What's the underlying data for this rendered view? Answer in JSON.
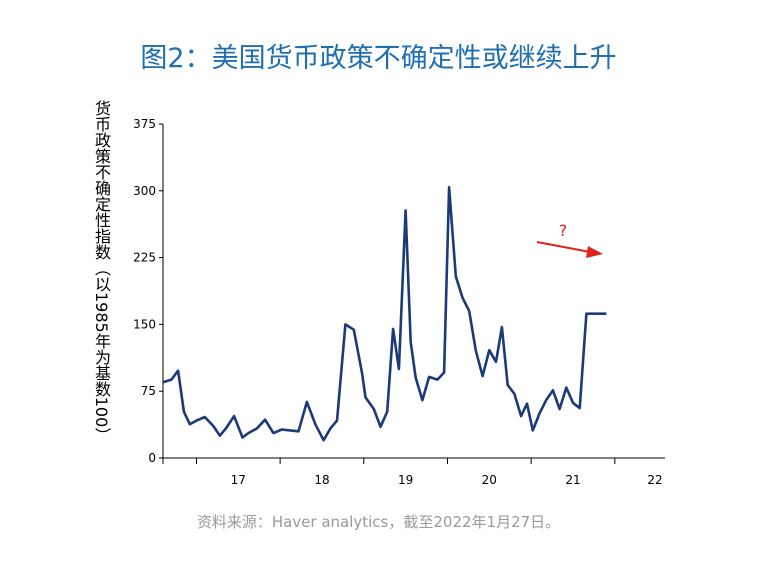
{
  "title": "图2：美国货币政策不确定性或继续上升",
  "source": "资料来源：Haver analytics，截至2022年1月27日。",
  "annotation": "?",
  "colors": {
    "title": "#1f6fb2",
    "line": "#1b3a7a",
    "arrow": "#e0231c"
  },
  "chart_data": {
    "type": "line",
    "title": "图2：美国货币政策不确定性或继续上升",
    "ylabel": "货币政策不确定性指数（以1985年为基数100）",
    "xlabel": "",
    "ylim": [
      0,
      375
    ],
    "yticks": [
      "0",
      "75",
      "150",
      "225",
      "300",
      "375"
    ],
    "xticks": [
      "17",
      "18",
      "19",
      "20",
      "21",
      "22"
    ],
    "xlim": [
      2016.6,
      2022.6
    ],
    "series": [
      {
        "x": [
          2016.6,
          2016.7,
          2016.78,
          2016.85,
          2016.92,
          2017.0,
          2017.1,
          2017.2,
          2017.28,
          2017.35,
          2017.45,
          2017.55,
          2017.62,
          2017.72,
          2017.82,
          2017.92,
          2018.02,
          2018.12,
          2018.22,
          2018.32,
          2018.42,
          2018.52,
          2018.6,
          2018.68,
          2018.78,
          2018.88,
          2018.98,
          2019.02,
          2019.12,
          2019.2,
          2019.28,
          2019.35,
          2019.42,
          2019.5,
          2019.56,
          2019.62,
          2019.7,
          2019.78,
          2019.88,
          2019.96,
          2020.02,
          2020.1,
          2020.18,
          2020.26,
          2020.34,
          2020.42,
          2020.5,
          2020.58,
          2020.65,
          2020.72,
          2020.8,
          2020.88,
          2020.95,
          2021.02,
          2021.1,
          2021.18,
          2021.26,
          2021.34,
          2021.42,
          2021.5,
          2021.58,
          2021.66,
          2021.74,
          2021.82,
          2021.9,
          2021.98,
          2022.05
        ],
        "y": [
          85,
          88,
          98,
          52,
          38,
          42,
          46,
          36,
          25,
          33,
          47,
          23,
          28,
          33,
          43,
          28,
          32,
          31,
          30,
          63,
          38,
          20,
          33,
          42,
          150,
          144,
          95,
          68,
          55,
          35,
          52,
          145,
          100,
          278,
          130,
          90,
          65,
          91,
          88,
          96,
          304,
          204,
          180,
          165,
          120,
          92,
          121,
          108,
          147,
          82,
          72,
          47,
          61,
          31,
          50,
          65,
          76,
          55,
          79,
          62,
          56,
          162,
          162,
          162,
          162,
          162,
          162
        ]
      }
    ]
  }
}
